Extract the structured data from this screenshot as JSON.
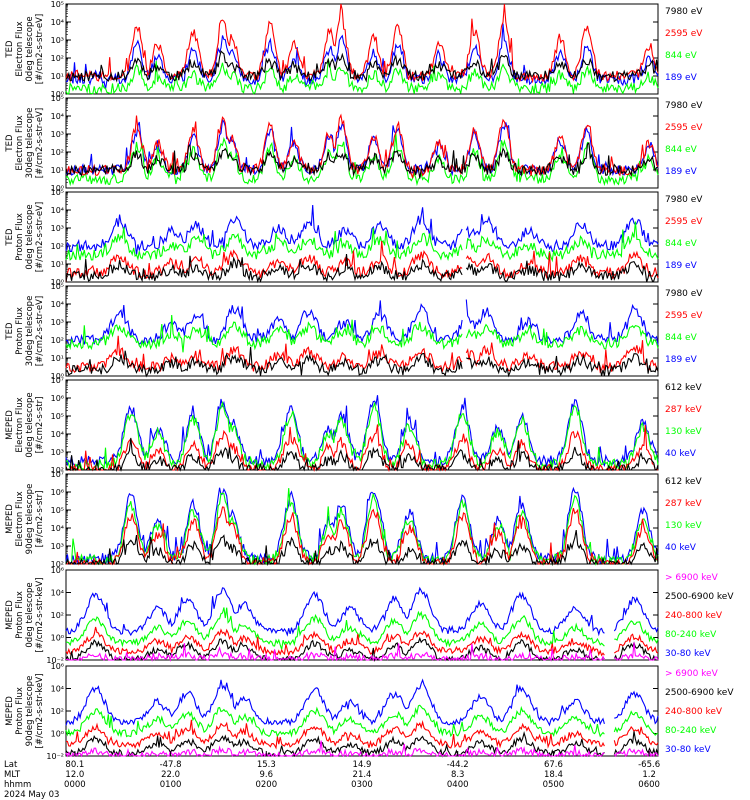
{
  "colors": {
    "black": "#000000",
    "red": "#ff0000",
    "green": "#00ff00",
    "blue": "#0000ff",
    "magenta": "#ff00ff"
  },
  "chart_data": [
    {
      "type": "line",
      "ylabel": [
        "TED",
        "Electron Flux",
        "0deg telescope",
        "[#/cm2-s-str-eV]"
      ],
      "yscale": "log",
      "ylim": [
        1,
        100000
      ],
      "yticks": [
        "10⁰",
        "10¹",
        "10²",
        "10³",
        "10⁴",
        "10⁵"
      ],
      "series": [
        {
          "name": "7980 eV",
          "color": "#000000",
          "peak": 2,
          "base": 1
        },
        {
          "name": "2595 eV",
          "color": "#ff0000",
          "peak": 4.2,
          "base": 1
        },
        {
          "name": "844 eV",
          "color": "#00ff00",
          "peak": 1.5,
          "base": 0.3
        },
        {
          "name": "189 eV",
          "color": "#0000ff",
          "peak": 3,
          "base": 0.8
        }
      ]
    },
    {
      "type": "line",
      "ylabel": [
        "TED",
        "Electron Flux",
        "30deg telescope",
        "[#/cm2-s-str-eV]"
      ],
      "yscale": "log",
      "ylim": [
        1,
        100000
      ],
      "yticks": [
        "10⁰",
        "10¹",
        "10²",
        "10³",
        "10⁴",
        "10⁵"
      ],
      "series": [
        {
          "name": "7980 eV",
          "color": "#000000",
          "peak": 2,
          "base": 1
        },
        {
          "name": "2595 eV",
          "color": "#ff0000",
          "peak": 3.8,
          "base": 1
        },
        {
          "name": "844 eV",
          "color": "#00ff00",
          "peak": 2.5,
          "base": 0.5
        },
        {
          "name": "189 eV",
          "color": "#0000ff",
          "peak": 3.5,
          "base": 1
        }
      ]
    },
    {
      "type": "line",
      "ylabel": [
        "TED",
        "Proton Flux",
        "0deg telescope",
        "[#/cm2-s-str-eV]"
      ],
      "yscale": "log",
      "ylim": [
        1,
        100000
      ],
      "yticks": [
        "10⁰",
        "10¹",
        "10²",
        "10³",
        "10⁴",
        "10⁵"
      ],
      "series": [
        {
          "name": "7980 eV",
          "color": "#000000",
          "peak": 1,
          "base": 0.3
        },
        {
          "name": "2595 eV",
          "color": "#ff0000",
          "peak": 1.5,
          "base": 0.5
        },
        {
          "name": "844 eV",
          "color": "#00ff00",
          "peak": 2.5,
          "base": 1.5
        },
        {
          "name": "189 eV",
          "color": "#0000ff",
          "peak": 3.5,
          "base": 2
        }
      ]
    },
    {
      "type": "line",
      "ylabel": [
        "TED",
        "Proton Flux",
        "30deg telescope",
        "[#/cm2-s-str-eV]"
      ],
      "yscale": "log",
      "ylim": [
        1,
        100000
      ],
      "yticks": [
        "10⁰",
        "10¹",
        "10²",
        "10³",
        "10⁴",
        "10⁵"
      ],
      "series": [
        {
          "name": "7980 eV",
          "color": "#000000",
          "peak": 1,
          "base": 0.3
        },
        {
          "name": "2595 eV",
          "color": "#ff0000",
          "peak": 1.5,
          "base": 0.5
        },
        {
          "name": "844 eV",
          "color": "#00ff00",
          "peak": 2.8,
          "base": 1.8
        },
        {
          "name": "189 eV",
          "color": "#0000ff",
          "peak": 3.8,
          "base": 2
        }
      ]
    },
    {
      "type": "line",
      "ylabel": [
        "MEPED",
        "Electron Flux",
        "0deg telescope",
        "[#/cm2-s-str]"
      ],
      "yscale": "log",
      "ylim": [
        100,
        10000000
      ],
      "yticks": [
        "10²",
        "10³",
        "10⁴",
        "10⁵",
        "10⁶",
        "10⁷"
      ],
      "series": [
        {
          "name": "612 keV",
          "color": "#000000",
          "peak": 3,
          "base": 2
        },
        {
          "name": "287 keV",
          "color": "#ff0000",
          "peak": 4,
          "base": 2
        },
        {
          "name": "130 keV",
          "color": "#00ff00",
          "peak": 5.5,
          "base": 2.3
        },
        {
          "name": "40 keV",
          "color": "#0000ff",
          "peak": 5.8,
          "base": 2.5
        }
      ]
    },
    {
      "type": "line",
      "ylabel": [
        "MEPED",
        "Electron Flux",
        "90deg telescope",
        "[#/cm2-s-str]"
      ],
      "yscale": "log",
      "ylim": [
        100,
        10000000
      ],
      "yticks": [
        "10²",
        "10³",
        "10⁴",
        "10⁵",
        "10⁶",
        "10⁷"
      ],
      "series": [
        {
          "name": "612 keV",
          "color": "#000000",
          "peak": 3.3,
          "base": 2
        },
        {
          "name": "287 keV",
          "color": "#ff0000",
          "peak": 5,
          "base": 2
        },
        {
          "name": "130 keV",
          "color": "#00ff00",
          "peak": 5.7,
          "base": 2.2
        },
        {
          "name": "40 keV",
          "color": "#0000ff",
          "peak": 6.2,
          "base": 2.3
        }
      ]
    },
    {
      "type": "line",
      "ylabel": [
        "MEPED",
        "Proton Flux",
        "0deg telescope",
        "[#/cm2-s-str-keV]"
      ],
      "yscale": "log",
      "ylim": [
        0.01,
        1000000
      ],
      "yticks": [
        "10⁻²",
        "10⁰",
        "10²",
        "10⁴",
        "10⁶"
      ],
      "series": [
        {
          "name": "> 6900 keV",
          "color": "#ff00ff",
          "peak": -1.5,
          "base": -2
        },
        {
          "name": "2500-6900 keV",
          "color": "#000000",
          "peak": -0.3,
          "base": -2
        },
        {
          "name": "240-800 keV",
          "color": "#ff0000",
          "peak": 0.5,
          "base": -1.3
        },
        {
          "name": "80-240 keV",
          "color": "#00ff00",
          "peak": 2,
          "base": -0.5
        },
        {
          "name": "30-80 keV",
          "color": "#0000ff",
          "peak": 4.2,
          "base": 0.5
        }
      ]
    },
    {
      "type": "line",
      "ylabel": [
        "MEPED",
        "Proton Flux",
        "90deg telescope",
        "[#/cm2-s-str-keV]"
      ],
      "yscale": "log",
      "ylim": [
        0.01,
        1000000
      ],
      "yticks": [
        "10⁻²",
        "10⁰",
        "10²",
        "10⁴",
        "10⁶"
      ],
      "series": [
        {
          "name": "> 6900 keV",
          "color": "#ff00ff",
          "peak": -1.5,
          "base": -2
        },
        {
          "name": "2500-6900 keV",
          "color": "#000000",
          "peak": -0.3,
          "base": -1.8
        },
        {
          "name": "240-800 keV",
          "color": "#ff0000",
          "peak": 0.8,
          "base": -1
        },
        {
          "name": "80-240 keV",
          "color": "#00ff00",
          "peak": 2.3,
          "base": 0
        },
        {
          "name": "30-80 keV",
          "color": "#0000ff",
          "peak": 4.3,
          "base": 1
        }
      ]
    }
  ],
  "x_axis": {
    "row_labels": [
      "Lat",
      "MLT",
      "hhmm",
      "2024 May 03"
    ],
    "ticks": [
      {
        "lat": "80.1",
        "mlt": "12.0",
        "hhmm": "0000"
      },
      {
        "lat": "-47.8",
        "mlt": "22.0",
        "hhmm": "0100"
      },
      {
        "lat": "15.3",
        "mlt": "9.6",
        "hhmm": "0200"
      },
      {
        "lat": "14.9",
        "mlt": "21.4",
        "hhmm": "0300"
      },
      {
        "lat": "-44.2",
        "mlt": "8.3",
        "hhmm": "0400"
      },
      {
        "lat": "67.6",
        "mlt": "18.4",
        "hhmm": "0500"
      },
      {
        "lat": "-65.6",
        "mlt": "1.2",
        "hhmm": "0600"
      }
    ]
  }
}
